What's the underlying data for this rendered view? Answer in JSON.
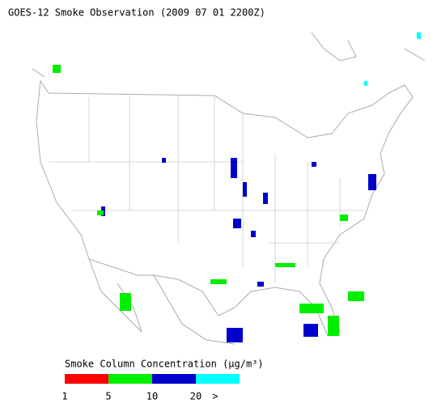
{
  "header": {
    "title": "GOES-12 Smoke Observation (2009 07 01  2200Z)"
  },
  "legend": {
    "title": "Smoke Column Concentration (μg/m³)",
    "ticks": [
      1,
      5,
      10,
      20
    ],
    "overflow_label": ">",
    "colors": [
      "#ff0000",
      "#00ee00",
      "#0000cc",
      "#00ffff"
    ]
  }
}
